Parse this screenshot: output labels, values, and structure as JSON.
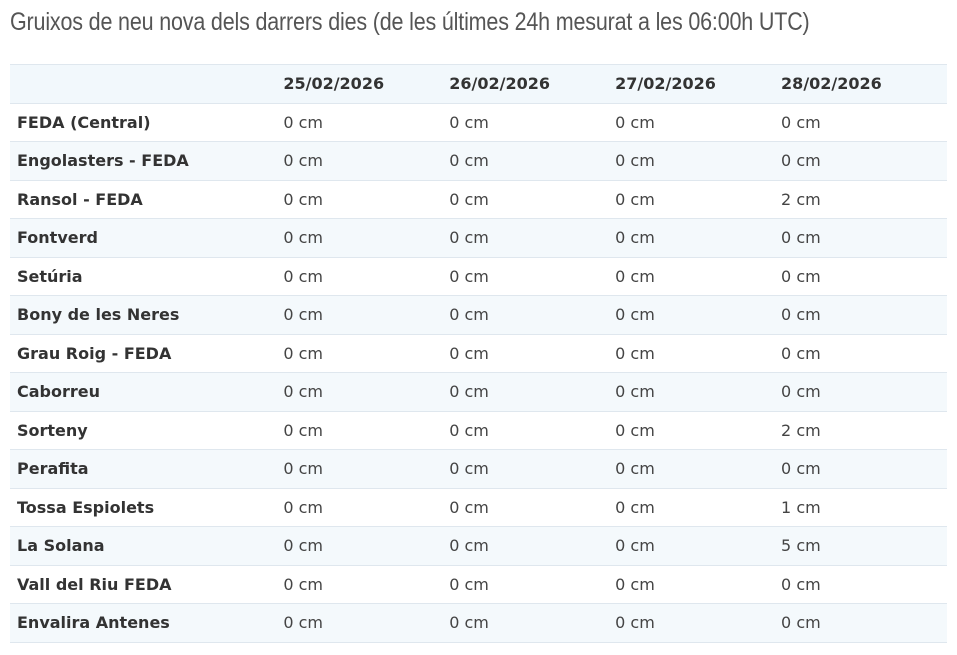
{
  "title": "Gruixos de neu nova dels darrers dies (de les últimes 24h mesurat a les 06:00h UTC)",
  "table": {
    "headers": [
      "",
      "25/02/2026",
      "26/02/2026",
      "27/02/2026",
      "28/02/2026"
    ],
    "rows": [
      {
        "name": "FEDA (Central)",
        "values": [
          "0 cm",
          "0 cm",
          "0 cm",
          "0 cm"
        ]
      },
      {
        "name": "Engolasters - FEDA",
        "values": [
          "0 cm",
          "0 cm",
          "0 cm",
          "0 cm"
        ]
      },
      {
        "name": "Ransol - FEDA",
        "values": [
          "0 cm",
          "0 cm",
          "0 cm",
          "2 cm"
        ]
      },
      {
        "name": "Fontverd",
        "values": [
          "0 cm",
          "0 cm",
          "0 cm",
          "0 cm"
        ]
      },
      {
        "name": "Setúria",
        "values": [
          "0 cm",
          "0 cm",
          "0 cm",
          "0 cm"
        ]
      },
      {
        "name": "Bony de les Neres",
        "values": [
          "0 cm",
          "0 cm",
          "0 cm",
          "0 cm"
        ]
      },
      {
        "name": "Grau Roig - FEDA",
        "values": [
          "0 cm",
          "0 cm",
          "0 cm",
          "0 cm"
        ]
      },
      {
        "name": "Caborreu",
        "values": [
          "0 cm",
          "0 cm",
          "0 cm",
          "0 cm"
        ]
      },
      {
        "name": "Sorteny",
        "values": [
          "0 cm",
          "0 cm",
          "0 cm",
          "2 cm"
        ]
      },
      {
        "name": "Perafita",
        "values": [
          "0 cm",
          "0 cm",
          "0 cm",
          "0 cm"
        ]
      },
      {
        "name": "Tossa Espiolets",
        "values": [
          "0 cm",
          "0 cm",
          "0 cm",
          "1 cm"
        ]
      },
      {
        "name": "La Solana",
        "values": [
          "0 cm",
          "0 cm",
          "0 cm",
          "5 cm"
        ]
      },
      {
        "name": "Vall del Riu FEDA",
        "values": [
          "0 cm",
          "0 cm",
          "0 cm",
          "0 cm"
        ]
      },
      {
        "name": "Envalira Antenes",
        "values": [
          "0 cm",
          "0 cm",
          "0 cm",
          "0 cm"
        ]
      }
    ]
  }
}
